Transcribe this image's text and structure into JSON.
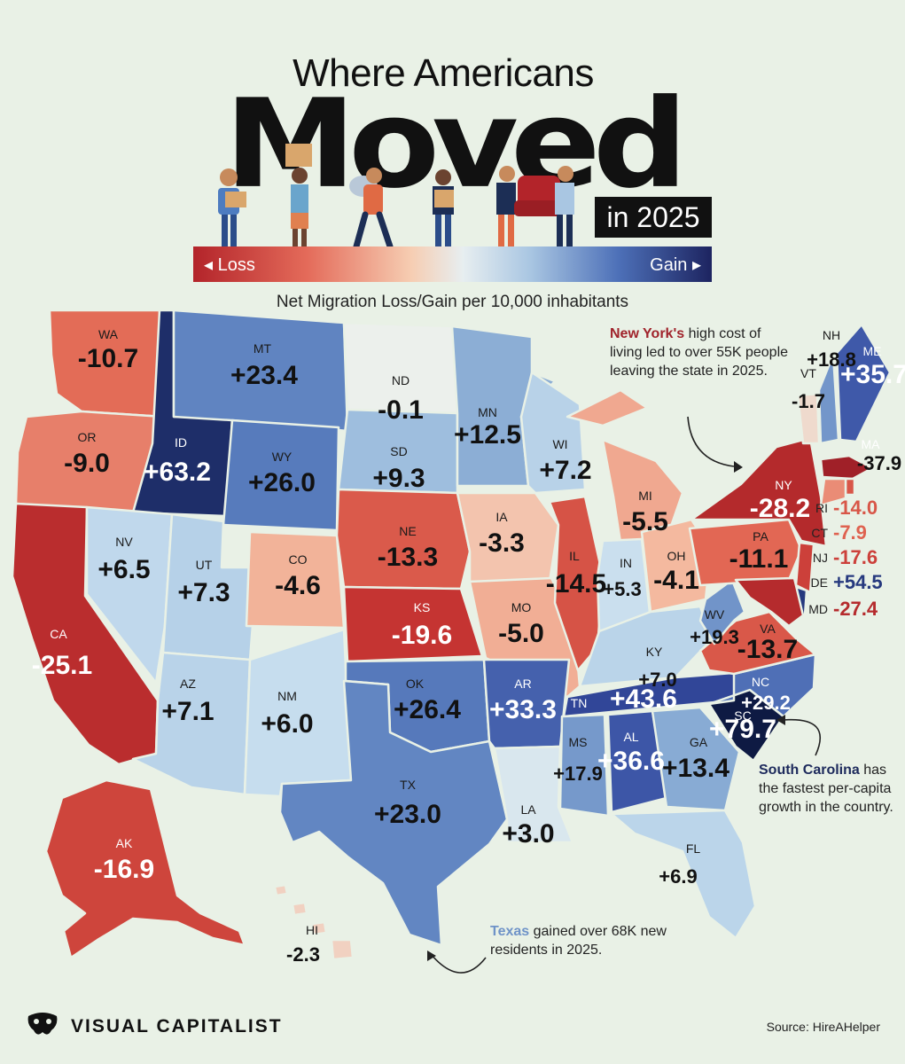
{
  "header": {
    "pre_title": "Where Americans",
    "title": "Moved",
    "year": "in 2025",
    "subtitle": "Net Migration Loss/Gain per 10,000 inhabitants"
  },
  "legend": {
    "loss_label": "◂ Loss",
    "gain_label": "Gain ▸",
    "scale_colors": [
      "#b3242a",
      "#e46b5a",
      "#f6cdb2",
      "#e7eef0",
      "#a9c6e2",
      "#4d70b8",
      "#1d2460"
    ]
  },
  "map_data": {
    "metric": "Net Migration Loss/Gain per 10,000 inhabitants",
    "states": [
      {
        "abbr": "WA",
        "value": "-10.7"
      },
      {
        "abbr": "OR",
        "value": "-9.0"
      },
      {
        "abbr": "CA",
        "value": "-25.1"
      },
      {
        "abbr": "ID",
        "value": "+63.2"
      },
      {
        "abbr": "NV",
        "value": "+6.5"
      },
      {
        "abbr": "MT",
        "value": "+23.4"
      },
      {
        "abbr": "WY",
        "value": "+26.0"
      },
      {
        "abbr": "UT",
        "value": "+7.3"
      },
      {
        "abbr": "AZ",
        "value": "+7.1"
      },
      {
        "abbr": "CO",
        "value": "-4.6"
      },
      {
        "abbr": "NM",
        "value": "+6.0"
      },
      {
        "abbr": "ND",
        "value": "-0.1"
      },
      {
        "abbr": "SD",
        "value": "+9.3"
      },
      {
        "abbr": "NE",
        "value": "-13.3"
      },
      {
        "abbr": "KS",
        "value": "-19.6"
      },
      {
        "abbr": "OK",
        "value": "+26.4"
      },
      {
        "abbr": "TX",
        "value": "+23.0"
      },
      {
        "abbr": "MN",
        "value": "+12.5"
      },
      {
        "abbr": "IA",
        "value": "-3.3"
      },
      {
        "abbr": "MO",
        "value": "-5.0"
      },
      {
        "abbr": "AR",
        "value": "+33.3"
      },
      {
        "abbr": "LA",
        "value": "+3.0"
      },
      {
        "abbr": "WI",
        "value": "+7.2"
      },
      {
        "abbr": "IL",
        "value": "-14.5"
      },
      {
        "abbr": "MI",
        "value": "-5.5"
      },
      {
        "abbr": "IN",
        "value": "+5.3"
      },
      {
        "abbr": "OH",
        "value": "-4.1"
      },
      {
        "abbr": "KY",
        "value": "+7.0"
      },
      {
        "abbr": "TN",
        "value": "+43.6"
      },
      {
        "abbr": "MS",
        "value": "+17.9"
      },
      {
        "abbr": "AL",
        "value": "+36.6"
      },
      {
        "abbr": "GA",
        "value": "+13.4"
      },
      {
        "abbr": "FL",
        "value": "+6.9"
      },
      {
        "abbr": "SC",
        "value": "+79.7"
      },
      {
        "abbr": "NC",
        "value": "+29.2"
      },
      {
        "abbr": "VA",
        "value": "-13.7"
      },
      {
        "abbr": "WV",
        "value": "+19.3"
      },
      {
        "abbr": "PA",
        "value": "-11.1"
      },
      {
        "abbr": "NY",
        "value": "-28.2"
      },
      {
        "abbr": "VT",
        "value": "-1.7"
      },
      {
        "abbr": "NH",
        "value": "+18.8"
      },
      {
        "abbr": "ME",
        "value": "+35.7"
      },
      {
        "abbr": "MA",
        "value": "-37.9"
      },
      {
        "abbr": "RI",
        "value": "-14.0"
      },
      {
        "abbr": "CT",
        "value": "-7.9"
      },
      {
        "abbr": "NJ",
        "value": "-17.6"
      },
      {
        "abbr": "DE",
        "value": "+54.5"
      },
      {
        "abbr": "MD",
        "value": "-27.4"
      },
      {
        "abbr": "AK",
        "value": "-16.9"
      },
      {
        "abbr": "HI",
        "value": "-2.3"
      }
    ]
  },
  "annotations": {
    "ny_bold": "New York's",
    "ny_text": " high cost of living led to over 55K people leaving the state in 2025.",
    "ny_color": "#a0232b",
    "sc_bold": "South Carolina",
    "sc_text": " has the fastest per-capita growth in the country.",
    "sc_color": "#1d2a5c",
    "tx_bold": "Texas",
    "tx_text": " gained over 68K new residents in 2025.",
    "tx_color": "#6f93c8"
  },
  "footer": {
    "brand": "VISUAL CAPITALIST",
    "source": "Source: HireAHelper"
  }
}
